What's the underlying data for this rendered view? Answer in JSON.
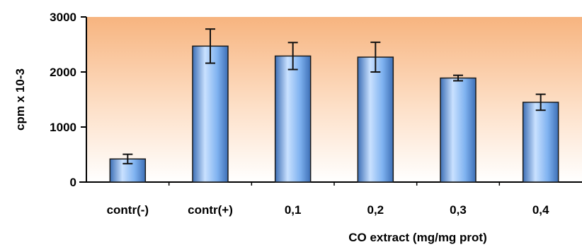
{
  "chart_data": {
    "type": "bar",
    "title": "",
    "xlabel": "CO extract (mg/mg prot)",
    "ylabel": "cpm x 10-3",
    "categories": [
      "contr(-)",
      "contr(+)",
      "0,1",
      "0,2",
      "0,3",
      "0,4"
    ],
    "values": [
      420,
      2470,
      2290,
      2270,
      1890,
      1450
    ],
    "errors": [
      85,
      310,
      245,
      270,
      50,
      145
    ],
    "ylim": [
      0,
      3000
    ],
    "yticks": [
      0,
      1000,
      2000,
      3000
    ],
    "grid": false,
    "legend": "none",
    "colors": {
      "bar_light": "#c9e1ff",
      "bar_mid": "#7fb2f0",
      "bar_dark": "#3d6fb6",
      "bar_outline": "#1a1a1a",
      "plot_top": "#f7b47f",
      "plot_bottom": "#ffffff"
    }
  }
}
